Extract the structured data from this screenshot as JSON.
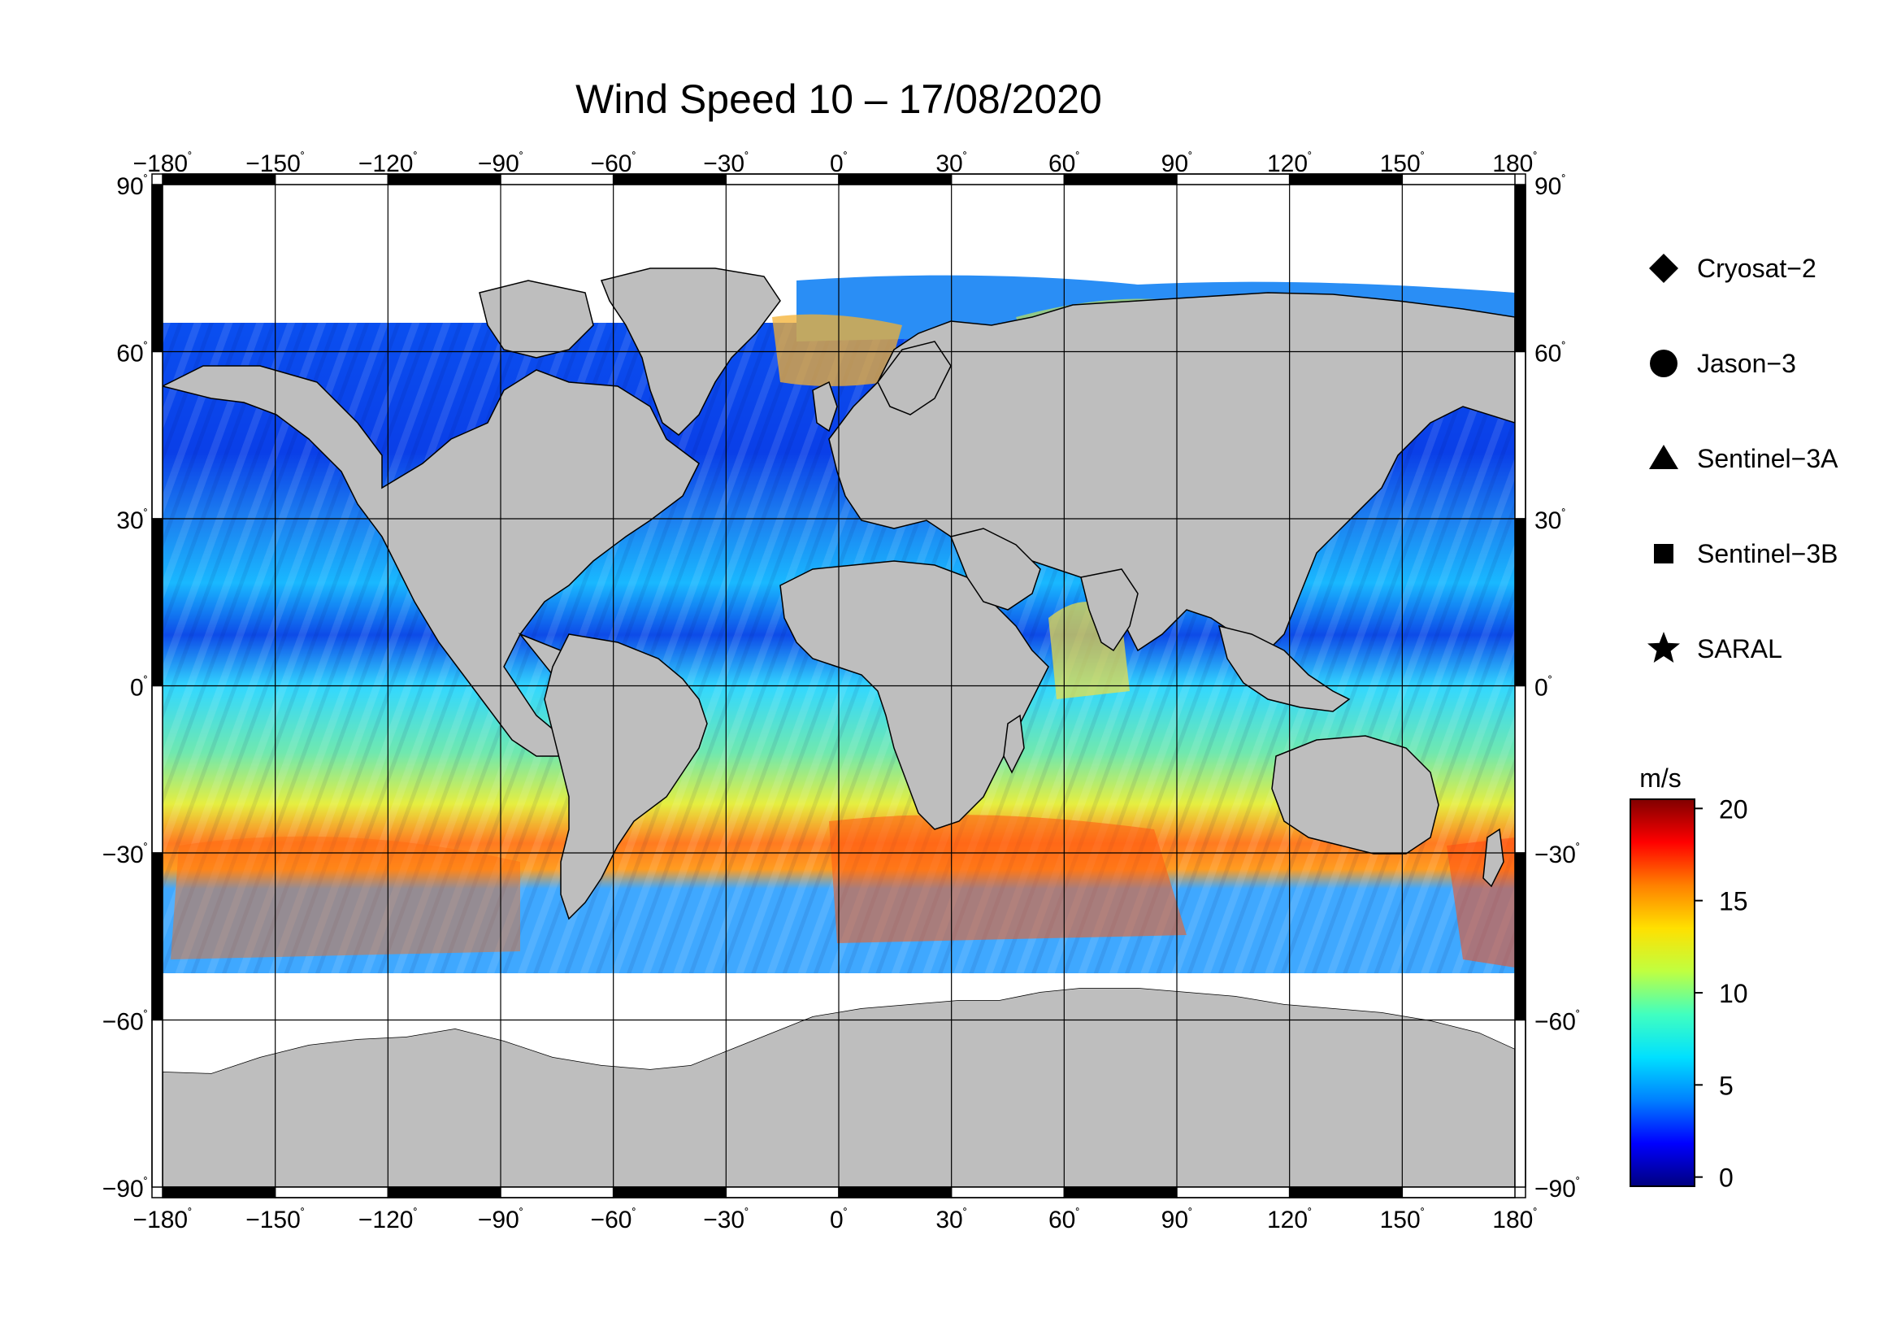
{
  "title": "Wind Speed 10 – 17/08/2020",
  "map": {
    "lon_ticks": [
      -180,
      -150,
      -120,
      -90,
      -60,
      -30,
      0,
      30,
      60,
      90,
      120,
      150,
      180
    ],
    "lat_ticks": [
      90,
      60,
      30,
      0,
      -30,
      -60,
      -90
    ],
    "lon_labels": [
      "−180",
      "−150",
      "−120",
      "−90",
      "−60",
      "−30",
      "0",
      "30",
      "60",
      "90",
      "120",
      "150",
      "180"
    ],
    "lat_labels": [
      "90",
      "60",
      "30",
      "0",
      "−30",
      "−60",
      "−90"
    ],
    "degree_symbol": "˚",
    "land_color": "#bebebe",
    "ice_color": "#ffffff"
  },
  "legend": [
    {
      "label": "Cryosat−2",
      "icon": "diamond-icon"
    },
    {
      "label": "Jason−3",
      "icon": "circle-icon"
    },
    {
      "label": "Sentinel−3A",
      "icon": "triangle-icon"
    },
    {
      "label": "Sentinel−3B",
      "icon": "square-icon"
    },
    {
      "label": "SARAL",
      "icon": "star-icon"
    }
  ],
  "colorbar": {
    "unit": "m/s",
    "ticks": [
      0,
      5,
      10,
      15,
      20
    ],
    "tick_labels": [
      "0",
      "5",
      "10",
      "15",
      "20"
    ],
    "range": [
      -0.5,
      20.5
    ],
    "colors": [
      "#00007f",
      "#0000ff",
      "#0080ff",
      "#00e0ff",
      "#40ffc0",
      "#c0ff40",
      "#ffe000",
      "#ff8000",
      "#ff0000",
      "#800000"
    ]
  }
}
